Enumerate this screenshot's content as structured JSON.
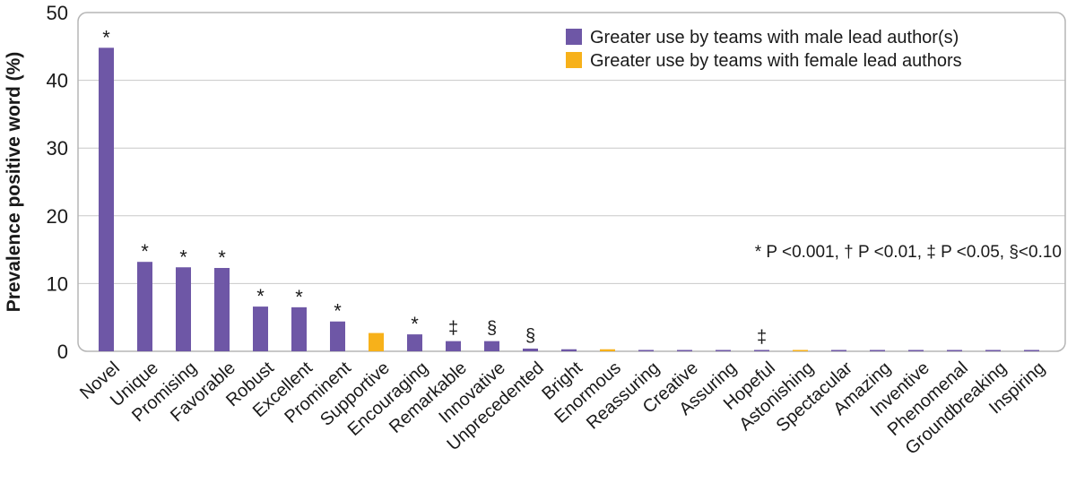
{
  "chart_data": {
    "type": "bar",
    "title": "",
    "xlabel": "",
    "ylabel": "Prevalence positive word (%)",
    "ylim": [
      0,
      50
    ],
    "yticks": [
      0,
      10,
      20,
      30,
      40,
      50
    ],
    "grid": true,
    "legend_position": "top-right",
    "categories": [
      "Novel",
      "Unique",
      "Promising",
      "Favorable",
      "Robust",
      "Excellent",
      "Prominent",
      "Supportive",
      "Encouraging",
      "Remarkable",
      "Innovative",
      "Unprecedented",
      "Bright",
      "Enormous",
      "Reassuring",
      "Creative",
      "Assuring",
      "Hopeful",
      "Astonishing",
      "Spectacular",
      "Amazing",
      "Inventive",
      "Phenomenal",
      "Groundbreaking",
      "Inspiring"
    ],
    "values": [
      44.8,
      13.2,
      12.4,
      12.3,
      6.6,
      6.5,
      4.4,
      2.7,
      2.5,
      1.5,
      1.5,
      0.4,
      0.3,
      0.3,
      0.2,
      0.1,
      0.05,
      0.05,
      0.05,
      0.05,
      0.05,
      0.05,
      0.05,
      0.03,
      0.02
    ],
    "groups": [
      "male",
      "male",
      "male",
      "male",
      "male",
      "male",
      "male",
      "female",
      "male",
      "male",
      "male",
      "male",
      "male",
      "female",
      "male",
      "male",
      "male",
      "male",
      "female",
      "male",
      "male",
      "male",
      "male",
      "male",
      "male"
    ],
    "markers": [
      "*",
      "*",
      "*",
      "*",
      "*",
      "*",
      "*",
      "",
      "*",
      "‡",
      "§",
      "§",
      "",
      "",
      "",
      "",
      "",
      "‡",
      "",
      "",
      "",
      "",
      "",
      "",
      ""
    ],
    "series": [
      {
        "name": "Greater use by teams with male lead author(s)",
        "key": "male",
        "color": "#6e57a6"
      },
      {
        "name": "Greater use by teams with female lead authors",
        "key": "female",
        "color": "#f7b11a"
      }
    ],
    "annotation": "* P <0.001, † P <0.01, ‡ P <0.05, §<0.10"
  }
}
